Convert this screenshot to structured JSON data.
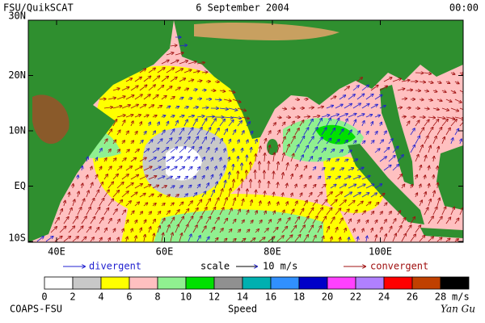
{
  "header": {
    "source": "FSU/QuikSCAT",
    "date": "6 September 2004",
    "time": "00:00"
  },
  "map": {
    "lat_labels": [
      "30N",
      "20N",
      "10N",
      "EQ",
      "10S"
    ],
    "lon_labels": [
      "40E",
      "60E",
      "80E",
      "100E"
    ]
  },
  "legend": {
    "divergent": "divergent",
    "scale": "scale",
    "scale_value": "10 m/s",
    "convergent": "convergent"
  },
  "colorbar": {
    "colors": [
      "#ffffff",
      "#c8c8c8",
      "#ffff00",
      "#ffc0c0",
      "#90f090",
      "#00e000",
      "#909090",
      "#00b0b0",
      "#3090ff",
      "#0000c8",
      "#ff40ff",
      "#b080ff",
      "#ff0000",
      "#c04000",
      "#000000"
    ],
    "labels": [
      "0",
      "2",
      "4",
      "6",
      "8",
      "10",
      "12",
      "14",
      "16",
      "18",
      "20",
      "22",
      "24",
      "26",
      "28"
    ],
    "unit": "m/s",
    "title": "Speed"
  },
  "footer": {
    "left": "COAPS-FSU",
    "right": "Yan Gu"
  }
}
